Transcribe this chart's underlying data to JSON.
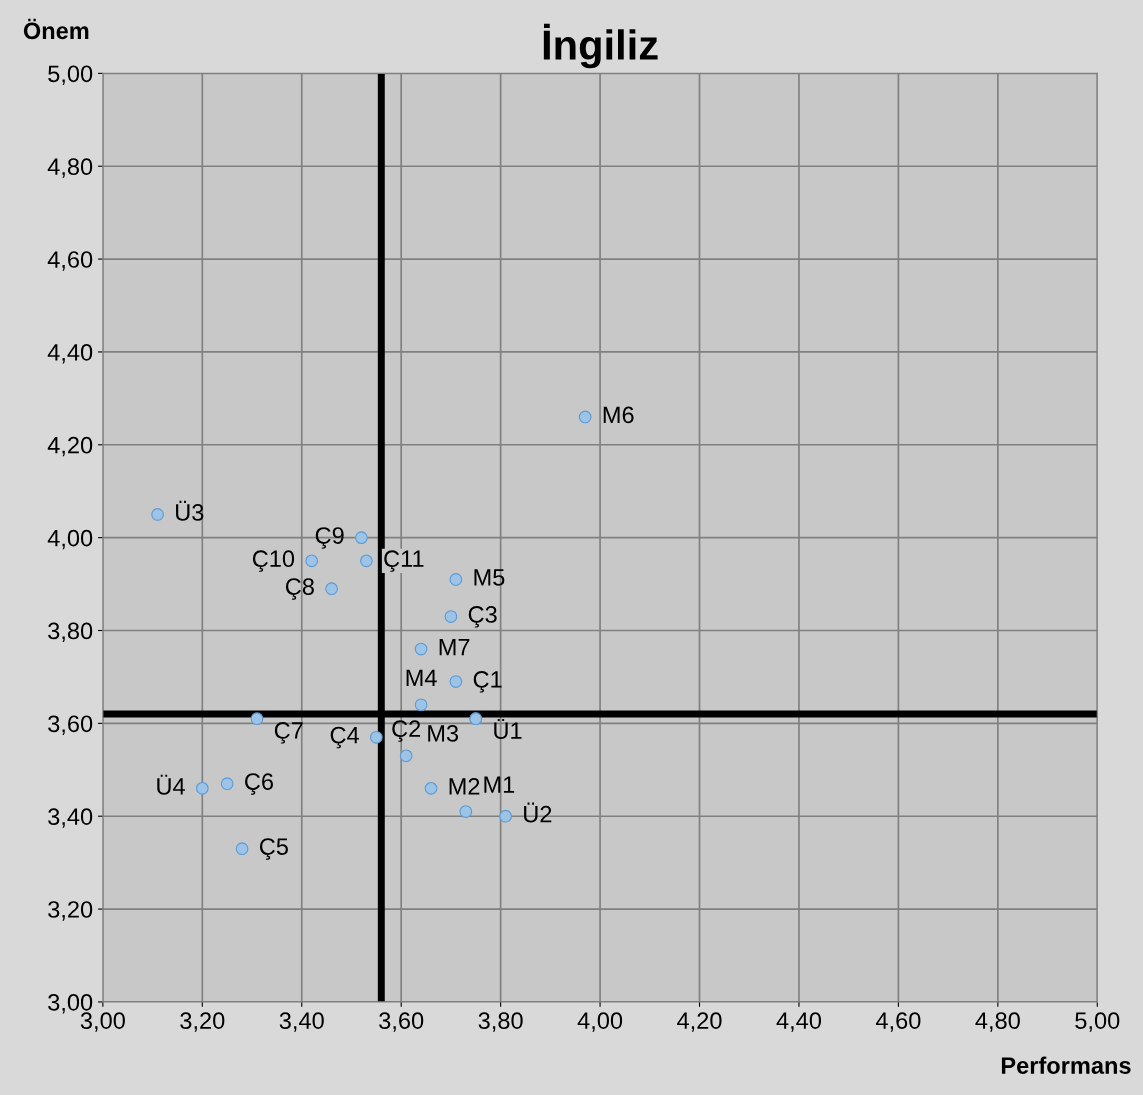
{
  "chart_data": {
    "type": "scatter",
    "title": "İngiliz",
    "xlabel": "Performans",
    "ylabel": "Önem",
    "x": [
      3.97,
      3.11,
      3.52,
      3.42,
      3.53,
      3.46,
      3.71,
      3.7,
      3.64,
      3.71,
      3.64,
      3.75,
      3.75,
      3.31,
      3.55,
      3.61,
      3.66,
      3.73,
      3.81,
      3.25,
      3.2,
      3.28
    ],
    "values": [
      4.26,
      4.05,
      4.0,
      3.95,
      3.95,
      3.89,
      3.91,
      3.83,
      3.76,
      3.69,
      3.64,
      3.61,
      3.61,
      3.61,
      3.57,
      3.53,
      3.46,
      3.41,
      3.4,
      3.47,
      3.46,
      3.33
    ],
    "value_labels": [
      "M6",
      "Ü3",
      "Ç9",
      "Ç10",
      "Ç11",
      "Ç8",
      "M5",
      "Ç3",
      "M7",
      "Ç1",
      "M4",
      "Ü1",
      "M3",
      "Ç7",
      "Ç4",
      "Ç2",
      "M2",
      "M1",
      "Ü2",
      "Ç6",
      "Ü4",
      "Ç5"
    ],
    "color": "#9dc3e6",
    "marker": "circle",
    "xlim": [
      3.0,
      5.0
    ],
    "xticks": [
      {
        "value": 3.0,
        "label": "3,00"
      },
      {
        "value": 3.2,
        "label": "3,20"
      },
      {
        "value": 3.4,
        "label": "3,40"
      },
      {
        "value": 3.6,
        "label": "3,60"
      },
      {
        "value": 3.8,
        "label": "3,80"
      },
      {
        "value": 4.0,
        "label": "4,00"
      },
      {
        "value": 4.2,
        "label": "4,20"
      },
      {
        "value": 4.4,
        "label": "4,40"
      },
      {
        "value": 4.6,
        "label": "4,60"
      },
      {
        "value": 4.8,
        "label": "4,80"
      },
      {
        "value": 5.0,
        "label": "5,00"
      }
    ],
    "ylim": [
      3.0,
      5.0
    ],
    "yticks": [
      {
        "value": 3.0,
        "label": "3,00"
      },
      {
        "value": 3.2,
        "label": "3,20"
      },
      {
        "value": 3.4,
        "label": "3,40"
      },
      {
        "value": 3.6,
        "label": "3,60"
      },
      {
        "value": 3.8,
        "label": "3,80"
      },
      {
        "value": 4.0,
        "label": "4,00"
      },
      {
        "value": 4.2,
        "label": "4,20"
      },
      {
        "value": 4.4,
        "label": "4,40"
      },
      {
        "value": 4.6,
        "label": "4,60"
      },
      {
        "value": 4.8,
        "label": "4,80"
      },
      {
        "value": 5.0,
        "label": "5,00"
      }
    ],
    "ref_lines": [
      {
        "axis": "x",
        "value": 3.56,
        "color": "#000000"
      },
      {
        "axis": "y",
        "value": 3.62,
        "color": "#000000"
      }
    ],
    "grid": true
  }
}
